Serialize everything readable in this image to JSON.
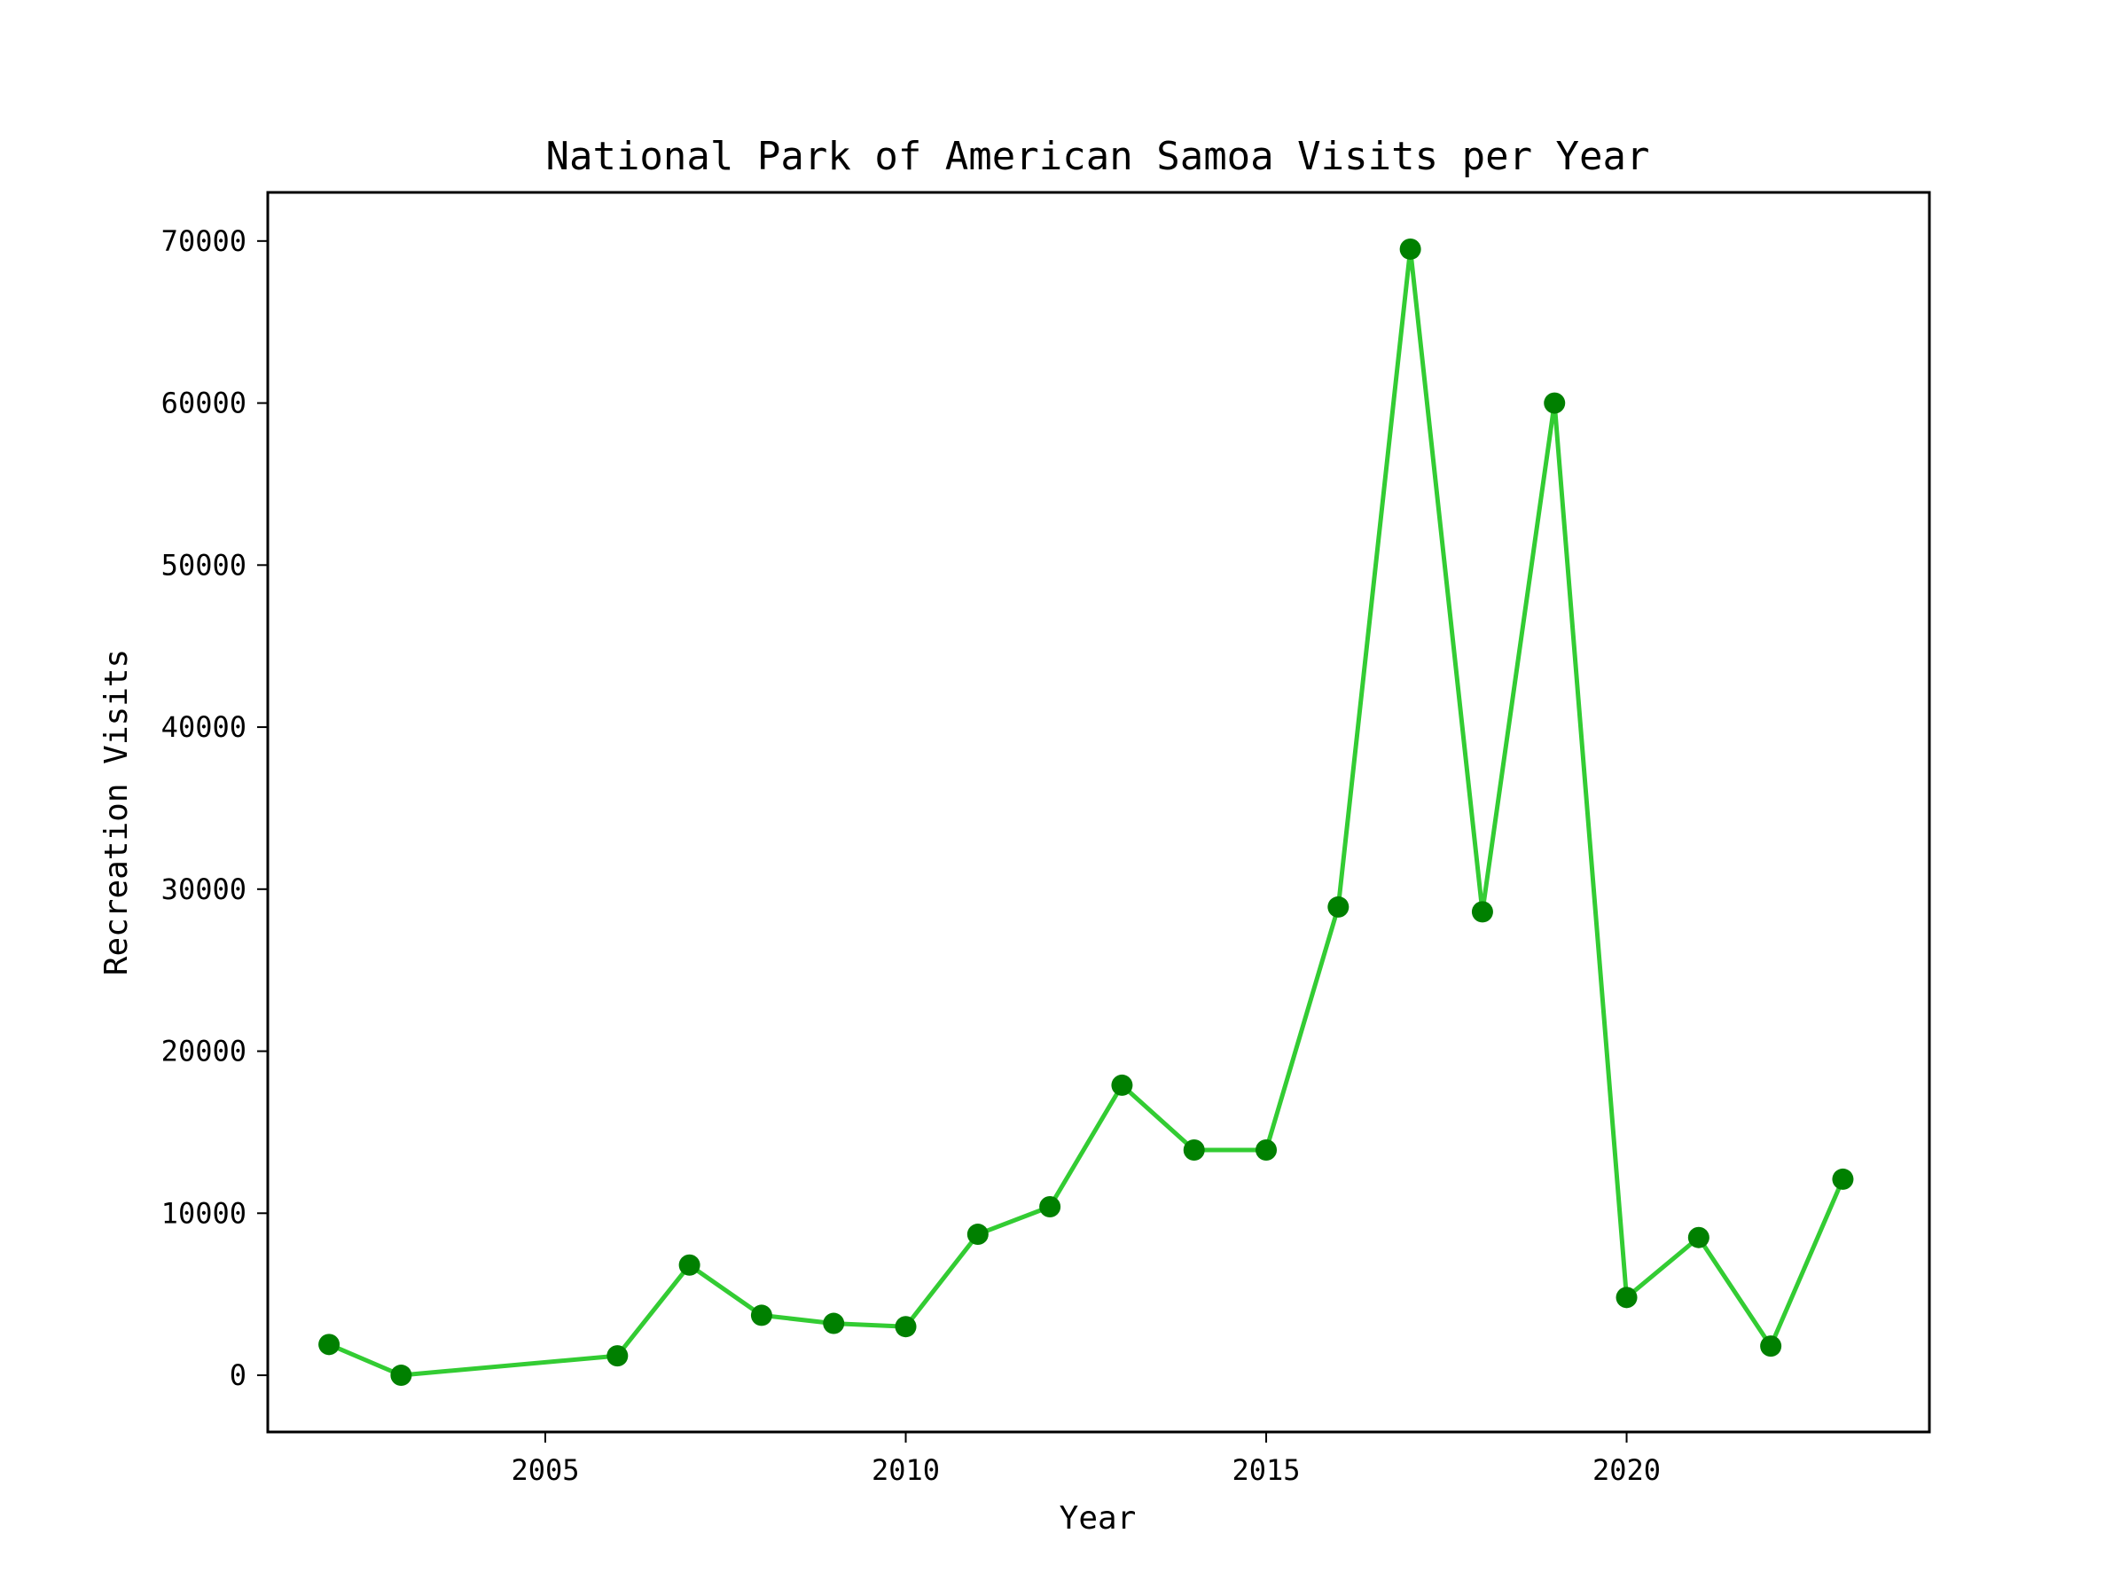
{
  "chart_data": {
    "type": "line",
    "title": "National Park of American Samoa Visits per Year",
    "xlabel": "Year",
    "ylabel": "Recreation Visits",
    "xlim": [
      2001.15,
      2024.2
    ],
    "ylim": [
      -3500,
      73000
    ],
    "xticks": [
      2005,
      2010,
      2015,
      2020
    ],
    "yticks": [
      0,
      10000,
      20000,
      30000,
      40000,
      50000,
      60000,
      70000
    ],
    "grid": false,
    "legend": "none",
    "series": [
      {
        "line_color": "#33cc33",
        "marker_color": "#008000",
        "x": [
          2002,
          2003,
          2006,
          2007,
          2008,
          2009,
          2010,
          2011,
          2012,
          2013,
          2014,
          2015,
          2016,
          2017,
          2018,
          2019,
          2020,
          2021,
          2022,
          2023
        ],
        "y": [
          1900,
          0,
          1200,
          6800,
          3700,
          3200,
          3000,
          8700,
          10400,
          17900,
          13900,
          13900,
          28900,
          69500,
          28600,
          60000,
          4800,
          8500,
          1800,
          12100
        ]
      }
    ]
  }
}
